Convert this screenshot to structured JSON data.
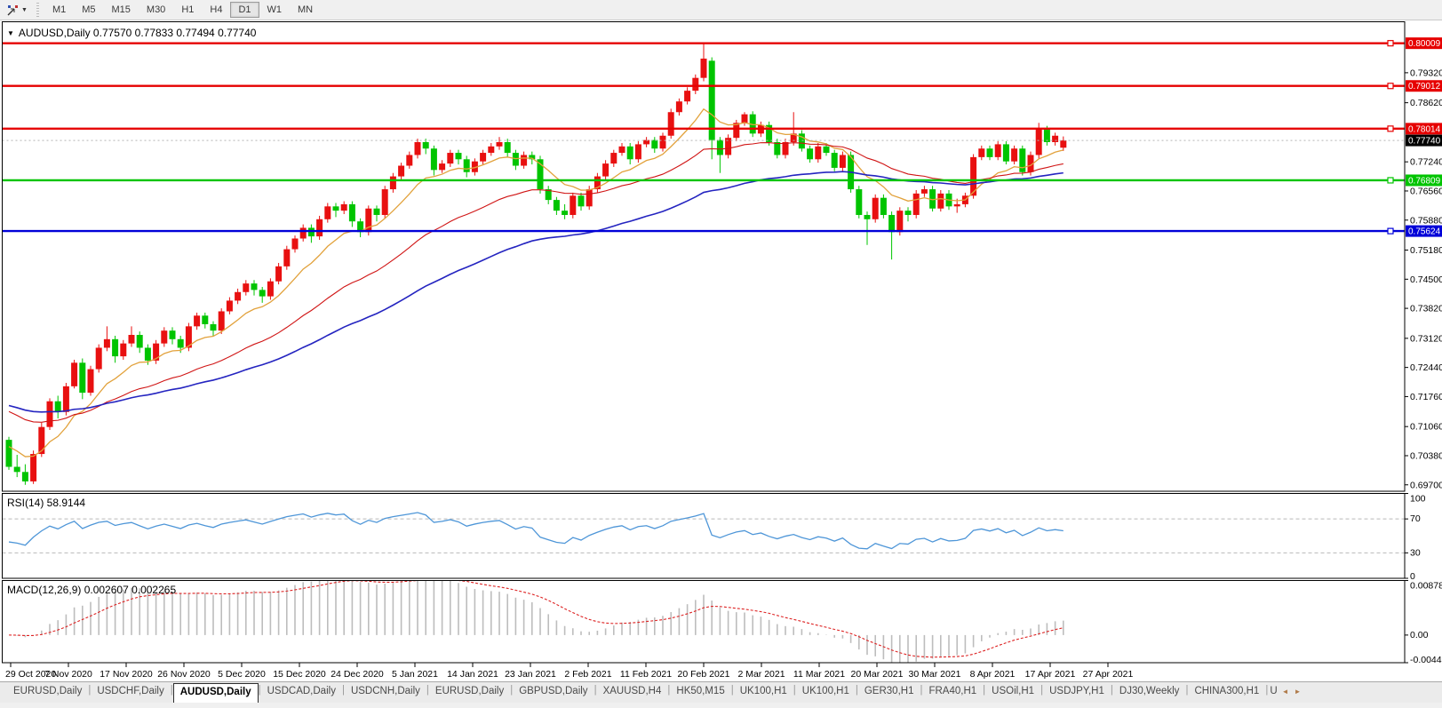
{
  "toolbar": {
    "caret": "▼",
    "timeframes": [
      "M1",
      "M5",
      "M15",
      "M30",
      "H1",
      "H4",
      "D1",
      "W1",
      "MN"
    ],
    "active_timeframe": "D1"
  },
  "chart": {
    "collapse_icon": "▼",
    "title": "AUDUSD,Daily  0.77570 0.77833 0.77494 0.77740"
  },
  "indicators": {
    "rsi_label": "RSI(14) 58.9144",
    "macd_label": "MACD(12,26,9) 0.002607 0.002265"
  },
  "tabs": {
    "items": [
      "EURUSD,Daily",
      "USDCHF,Daily",
      "AUDUSD,Daily",
      "USDCAD,Daily",
      "USDCNH,Daily",
      "EURUSD,Daily",
      "GBPUSD,Daily",
      "XAUUSD,H4",
      "HK50,M15",
      "UK100,H1",
      "UK100,H1",
      "GER30,H1",
      "FRA40,H1",
      "USOil,H1",
      "USDJPY,H1",
      "DJ30,Weekly",
      "CHINA300,H1"
    ],
    "active_index": 2,
    "overflow_label": "U",
    "scroll_left": "◄",
    "scroll_right": "►"
  },
  "chart_data": [
    {
      "type": "candlestick",
      "title": "AUDUSD,Daily",
      "ylim": [
        0.6955,
        0.8051
      ],
      "bull_color": "#e81010",
      "bear_color": "#00c400",
      "y_ticks": [
        0.7932,
        0.7862,
        0.7724,
        0.7656,
        0.7588,
        0.7518,
        0.745,
        0.7382,
        0.7312,
        0.7244,
        0.7176,
        0.7106,
        0.7038,
        0.697
      ],
      "hlines": [
        {
          "price": 0.80009,
          "color": "#e60000"
        },
        {
          "price": 0.79012,
          "color": "#e60000"
        },
        {
          "price": 0.78014,
          "color": "#e60000"
        },
        {
          "price": 0.76809,
          "color": "#00c400"
        },
        {
          "price": 0.75624,
          "color": "#0000d8"
        }
      ],
      "current_price": 0.7774,
      "current_price_color": "#000000",
      "ma": [
        {
          "period": 10,
          "color": "#e2a23c",
          "seed": 0.707,
          "width": 1.3
        },
        {
          "period": 30,
          "color": "#d01414",
          "seed": 0.715,
          "width": 1.1
        },
        {
          "period": 60,
          "color": "#2424c0",
          "seed": 0.716,
          "width": 1.6
        }
      ],
      "x_labels": [
        "29 Oct 2020",
        "7 Nov 2020",
        "17 Nov 2020",
        "26 Nov 2020",
        "5 Dec 2020",
        "15 Dec 2020",
        "24 Dec 2020",
        "5 Jan 2021",
        "14 Jan 2021",
        "23 Jan 2021",
        "2 Feb 2021",
        "11 Feb 2021",
        "20 Feb 2021",
        "2 Mar 2021",
        "11 Mar 2021",
        "20 Mar 2021",
        "30 Mar 2021",
        "8 Apr 2021",
        "17 Apr 2021",
        "27 Apr 2021"
      ],
      "ohlc": [
        [
          0.7075,
          0.7082,
          0.7005,
          0.7012
        ],
        [
          0.7012,
          0.704,
          0.6988,
          0.7
        ],
        [
          0.7,
          0.7018,
          0.697,
          0.6978
        ],
        [
          0.6978,
          0.705,
          0.6972,
          0.7042
        ],
        [
          0.7042,
          0.7115,
          0.7035,
          0.7105
        ],
        [
          0.7105,
          0.7172,
          0.7098,
          0.7165
        ],
        [
          0.7165,
          0.7178,
          0.7125,
          0.714
        ],
        [
          0.714,
          0.7208,
          0.7132,
          0.72
        ],
        [
          0.72,
          0.7262,
          0.7195,
          0.7255
        ],
        [
          0.7255,
          0.7265,
          0.717,
          0.7185
        ],
        [
          0.7185,
          0.7248,
          0.7178,
          0.724
        ],
        [
          0.724,
          0.7298,
          0.7232,
          0.729
        ],
        [
          0.729,
          0.734,
          0.7282,
          0.731
        ],
        [
          0.731,
          0.7318,
          0.7255,
          0.727
        ],
        [
          0.727,
          0.7308,
          0.7262,
          0.73
        ],
        [
          0.73,
          0.734,
          0.7292,
          0.732
        ],
        [
          0.732,
          0.7328,
          0.7278,
          0.729
        ],
        [
          0.729,
          0.7298,
          0.725,
          0.726
        ],
        [
          0.726,
          0.7308,
          0.7252,
          0.73
        ],
        [
          0.73,
          0.7338,
          0.7292,
          0.733
        ],
        [
          0.733,
          0.7338,
          0.7298,
          0.731
        ],
        [
          0.731,
          0.7318,
          0.7278,
          0.729
        ],
        [
          0.729,
          0.7348,
          0.7282,
          0.734
        ],
        [
          0.734,
          0.7372,
          0.7332,
          0.7365
        ],
        [
          0.7365,
          0.7372,
          0.7335,
          0.7345
        ],
        [
          0.7345,
          0.7352,
          0.7318,
          0.733
        ],
        [
          0.733,
          0.7382,
          0.7322,
          0.7375
        ],
        [
          0.7375,
          0.7408,
          0.7368,
          0.74
        ],
        [
          0.74,
          0.7428,
          0.7392,
          0.742
        ],
        [
          0.742,
          0.7448,
          0.7412,
          0.744
        ],
        [
          0.744,
          0.7448,
          0.7412,
          0.7425
        ],
        [
          0.7425,
          0.7432,
          0.7395,
          0.741
        ],
        [
          0.741,
          0.7452,
          0.7402,
          0.7445
        ],
        [
          0.7445,
          0.7488,
          0.7438,
          0.748
        ],
        [
          0.748,
          0.7528,
          0.7472,
          0.752
        ],
        [
          0.752,
          0.7552,
          0.7512,
          0.7545
        ],
        [
          0.7545,
          0.7578,
          0.7538,
          0.757
        ],
        [
          0.757,
          0.7578,
          0.7535,
          0.755
        ],
        [
          0.755,
          0.7598,
          0.7542,
          0.759
        ],
        [
          0.759,
          0.7628,
          0.7582,
          0.762
        ],
        [
          0.762,
          0.7628,
          0.7595,
          0.761
        ],
        [
          0.761,
          0.7632,
          0.7602,
          0.7625
        ],
        [
          0.7625,
          0.7632,
          0.7572,
          0.7585
        ],
        [
          0.7585,
          0.7592,
          0.7548,
          0.756
        ],
        [
          0.756,
          0.7622,
          0.7552,
          0.7615
        ],
        [
          0.7615,
          0.7622,
          0.7585,
          0.76
        ],
        [
          0.76,
          0.7668,
          0.7592,
          0.766
        ],
        [
          0.766,
          0.7698,
          0.7652,
          0.769
        ],
        [
          0.769,
          0.7722,
          0.7682,
          0.7715
        ],
        [
          0.7715,
          0.7748,
          0.7708,
          0.774
        ],
        [
          0.774,
          0.7778,
          0.7732,
          0.777
        ],
        [
          0.777,
          0.7778,
          0.7742,
          0.7755
        ],
        [
          0.7755,
          0.7762,
          0.7692,
          0.7705
        ],
        [
          0.7705,
          0.7728,
          0.7698,
          0.772
        ],
        [
          0.772,
          0.7752,
          0.7712,
          0.7745
        ],
        [
          0.7745,
          0.7752,
          0.7718,
          0.773
        ],
        [
          0.773,
          0.7738,
          0.7688,
          0.77
        ],
        [
          0.77,
          0.7732,
          0.7692,
          0.7725
        ],
        [
          0.7725,
          0.7752,
          0.7718,
          0.7745
        ],
        [
          0.7745,
          0.7768,
          0.7738,
          0.776
        ],
        [
          0.776,
          0.7782,
          0.7752,
          0.777
        ],
        [
          0.777,
          0.7778,
          0.7735,
          0.7745
        ],
        [
          0.7745,
          0.7752,
          0.7705,
          0.7715
        ],
        [
          0.7715,
          0.7748,
          0.7708,
          0.774
        ],
        [
          0.774,
          0.7748,
          0.7718,
          0.773
        ],
        [
          0.773,
          0.7738,
          0.765,
          0.766
        ],
        [
          0.766,
          0.7668,
          0.7625,
          0.7635
        ],
        [
          0.7635,
          0.7642,
          0.76,
          0.761
        ],
        [
          0.761,
          0.7625,
          0.759,
          0.76
        ],
        [
          0.76,
          0.7652,
          0.7592,
          0.7645
        ],
        [
          0.7645,
          0.7652,
          0.761,
          0.762
        ],
        [
          0.762,
          0.7668,
          0.7612,
          0.766
        ],
        [
          0.766,
          0.7698,
          0.7652,
          0.769
        ],
        [
          0.769,
          0.7728,
          0.7682,
          0.772
        ],
        [
          0.772,
          0.7752,
          0.7712,
          0.7745
        ],
        [
          0.7745,
          0.7768,
          0.7738,
          0.776
        ],
        [
          0.776,
          0.7768,
          0.7718,
          0.773
        ],
        [
          0.773,
          0.7772,
          0.7722,
          0.7765
        ],
        [
          0.7765,
          0.7782,
          0.7758,
          0.7775
        ],
        [
          0.7775,
          0.7782,
          0.7745,
          0.7755
        ],
        [
          0.7755,
          0.7792,
          0.7748,
          0.7785
        ],
        [
          0.7785,
          0.7848,
          0.7778,
          0.784
        ],
        [
          0.784,
          0.7872,
          0.7832,
          0.7865
        ],
        [
          0.7865,
          0.7898,
          0.7858,
          0.789
        ],
        [
          0.789,
          0.7928,
          0.7882,
          0.792
        ],
        [
          0.792,
          0.8001,
          0.7912,
          0.7965
        ],
        [
          0.796,
          0.7968,
          0.773,
          0.7775
        ],
        [
          0.7775,
          0.7782,
          0.7698,
          0.774
        ],
        [
          0.774,
          0.7788,
          0.7732,
          0.778
        ],
        [
          0.778,
          0.7822,
          0.7772,
          0.7815
        ],
        [
          0.7815,
          0.784,
          0.7808,
          0.7835
        ],
        [
          0.7835,
          0.7842,
          0.7782,
          0.779
        ],
        [
          0.779,
          0.7818,
          0.7782,
          0.781
        ],
        [
          0.781,
          0.7818,
          0.7762,
          0.777
        ],
        [
          0.777,
          0.7778,
          0.7732,
          0.774
        ],
        [
          0.774,
          0.7778,
          0.7732,
          0.777
        ],
        [
          0.777,
          0.784,
          0.7762,
          0.779
        ],
        [
          0.779,
          0.7798,
          0.7748,
          0.7755
        ],
        [
          0.7755,
          0.7762,
          0.7722,
          0.773
        ],
        [
          0.773,
          0.7768,
          0.7722,
          0.776
        ],
        [
          0.776,
          0.7768,
          0.7738,
          0.7745
        ],
        [
          0.7745,
          0.7752,
          0.7702,
          0.771
        ],
        [
          0.771,
          0.7748,
          0.7702,
          0.774
        ],
        [
          0.774,
          0.7748,
          0.7652,
          0.766
        ],
        [
          0.766,
          0.7668,
          0.7592,
          0.76
        ],
        [
          0.76,
          0.7608,
          0.753,
          0.759
        ],
        [
          0.759,
          0.7648,
          0.7582,
          0.764
        ],
        [
          0.764,
          0.7648,
          0.7592,
          0.76
        ],
        [
          0.76,
          0.7608,
          0.7496,
          0.756
        ],
        [
          0.756,
          0.7618,
          0.7552,
          0.761
        ],
        [
          0.761,
          0.7618,
          0.7585,
          0.76
        ],
        [
          0.76,
          0.7658,
          0.7592,
          0.765
        ],
        [
          0.765,
          0.7668,
          0.7642,
          0.766
        ],
        [
          0.766,
          0.7668,
          0.7608,
          0.7615
        ],
        [
          0.7615,
          0.7658,
          0.7608,
          0.765
        ],
        [
          0.765,
          0.7658,
          0.7612,
          0.762
        ],
        [
          0.762,
          0.7638,
          0.7605,
          0.7625
        ],
        [
          0.7625,
          0.7652,
          0.7618,
          0.7645
        ],
        [
          0.7645,
          0.7742,
          0.7638,
          0.7735
        ],
        [
          0.7735,
          0.7762,
          0.7728,
          0.7755
        ],
        [
          0.7755,
          0.7762,
          0.7728,
          0.7735
        ],
        [
          0.7735,
          0.7772,
          0.7728,
          0.7765
        ],
        [
          0.7765,
          0.7772,
          0.7718,
          0.7725
        ],
        [
          0.7725,
          0.7762,
          0.7718,
          0.7755
        ],
        [
          0.7755,
          0.7762,
          0.7692,
          0.77
        ],
        [
          0.77,
          0.7748,
          0.7692,
          0.774
        ],
        [
          0.774,
          0.7815,
          0.7732,
          0.78
        ],
        [
          0.78,
          0.7808,
          0.7762,
          0.777
        ],
        [
          0.777,
          0.7792,
          0.7762,
          0.7785
        ],
        [
          0.7757,
          0.77833,
          0.77494,
          0.7774
        ]
      ]
    },
    {
      "type": "line",
      "name": "RSI",
      "params": [
        14
      ],
      "value": 58.9144,
      "ylim": [
        0,
        100
      ],
      "levels": [
        70,
        30
      ],
      "y_ticks": [
        "100",
        "70",
        "30",
        "0"
      ],
      "color": "#4e96d8",
      "seed_gain": 0.0012,
      "seed_loss": 0.0016
    },
    {
      "type": "macd",
      "name": "MACD",
      "params": [
        12,
        26,
        9
      ],
      "values": [
        0.002607,
        0.002265
      ],
      "ylim": [
        -0.004451,
        0.008782
      ],
      "y_ticks": [
        "0.008782",
        "0.00",
        "-0.004451"
      ],
      "hist_color": "#bdbdbd",
      "signal_color": "#dd2222"
    }
  ]
}
